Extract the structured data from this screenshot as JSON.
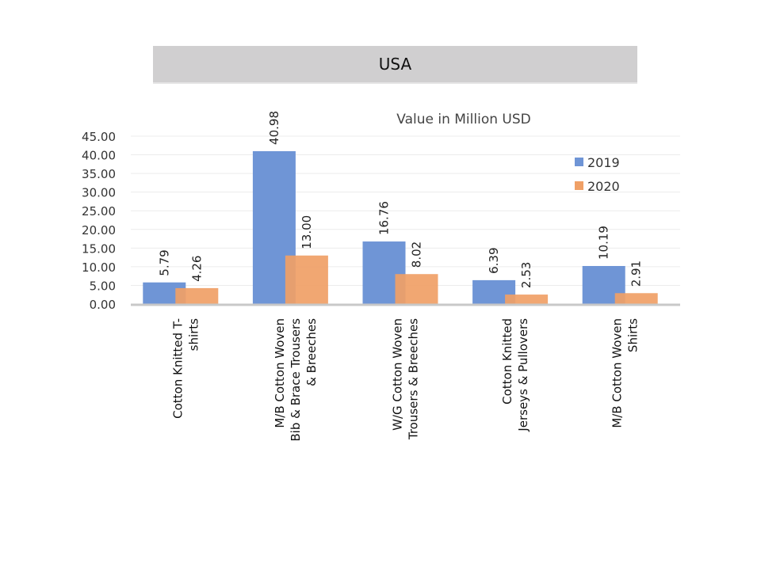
{
  "banner": {
    "title": "USA"
  },
  "chart_data": {
    "type": "bar",
    "title": "Value in Million USD",
    "xlabel": "",
    "ylabel": "",
    "ylim": [
      0,
      45
    ],
    "yticks": [
      "0.00",
      "5.00",
      "10.00",
      "15.00",
      "20.00",
      "25.00",
      "30.00",
      "35.00",
      "40.00",
      "45.00"
    ],
    "grid": true,
    "legend_position": "top-right",
    "categories": [
      [
        "Cotton Knitted  T-",
        "shirts"
      ],
      [
        "M/B Cotton Woven",
        "Bib & Brace Trousers",
        "& Breeches"
      ],
      [
        "W/G Cotton Woven",
        "Trousers & Breeches"
      ],
      [
        "Cotton Knitted",
        "Jerseys & Pullovers"
      ],
      [
        "M/B Cotton Woven",
        "Shirts"
      ]
    ],
    "series": [
      {
        "name": "2019",
        "color": "#6f95d6",
        "values": [
          5.79,
          40.98,
          16.76,
          6.39,
          10.19
        ],
        "labels": [
          "5.79",
          "40.98",
          "16.76",
          "6.39",
          "10.19"
        ]
      },
      {
        "name": "2020",
        "color": "#f0a066",
        "values": [
          4.26,
          13.0,
          8.02,
          2.53,
          2.91
        ],
        "labels": [
          "4.26",
          "13.00",
          "8.02",
          "2.53",
          "2.91"
        ]
      }
    ]
  }
}
